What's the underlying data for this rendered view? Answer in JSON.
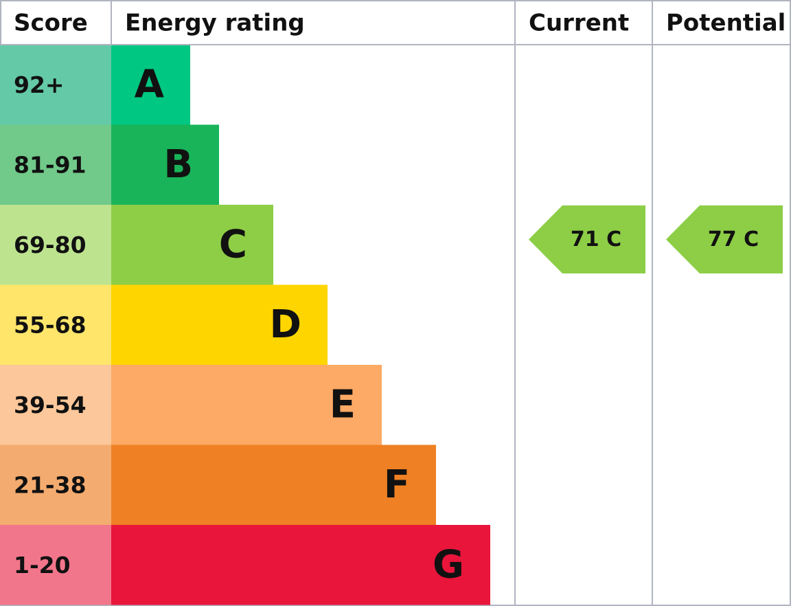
{
  "header": {
    "score": "Score",
    "energy_rating": "Energy rating",
    "current": "Current",
    "potential": "Potential"
  },
  "rows": [
    {
      "score": "92+",
      "letter": "A",
      "score_color": "#64c9a7",
      "bar_color": "#00c781"
    },
    {
      "score": "81-91",
      "letter": "B",
      "score_color": "#71c98a",
      "bar_color": "#19b459"
    },
    {
      "score": "69-80",
      "letter": "C",
      "score_color": "#bde38f",
      "bar_color": "#8dce46"
    },
    {
      "score": "55-68",
      "letter": "D",
      "score_color": "#ffe56a",
      "bar_color": "#ffd500"
    },
    {
      "score": "39-54",
      "letter": "E",
      "score_color": "#fcc79a",
      "bar_color": "#fcaa65"
    },
    {
      "score": "21-38",
      "letter": "F",
      "score_color": "#f4ab6f",
      "bar_color": "#ef8023"
    },
    {
      "score": "1-20",
      "letter": "G",
      "score_color": "#f2768b",
      "bar_color": "#e9153b"
    }
  ],
  "current": {
    "label": "71 C",
    "color": "#8dce46"
  },
  "potential": {
    "label": "77 C",
    "color": "#8dce46"
  }
}
